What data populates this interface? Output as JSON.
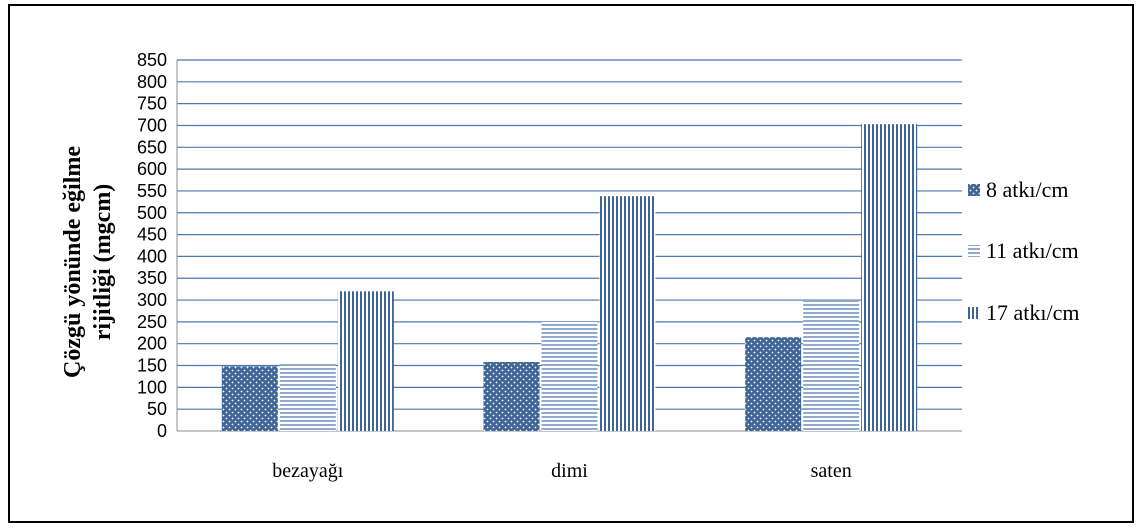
{
  "chart_data": {
    "type": "bar",
    "title": "",
    "xlabel": "",
    "ylabel_lines": [
      "Çözgü yönünde eğilme",
      "rijitliği (mgcm)"
    ],
    "categories": [
      "bezayağı",
      "dimi",
      "saten"
    ],
    "series": [
      {
        "name": "8 atkı/cm",
        "values": [
          148,
          158,
          215
        ],
        "pattern": "dots"
      },
      {
        "name": "11 atkı/cm",
        "values": [
          157,
          250,
          300
        ],
        "pattern": "horizontal-lines"
      },
      {
        "name": "17 atkı/cm",
        "values": [
          320,
          538,
          703
        ],
        "pattern": "vertical-lines"
      }
    ],
    "ylim": [
      0,
      850
    ],
    "ytick_step": 50,
    "grid": true,
    "legend_position": "right",
    "colors": {
      "bar": "#3f6496",
      "grid": "#4a79b3",
      "axis": "#8c8c8c"
    }
  }
}
